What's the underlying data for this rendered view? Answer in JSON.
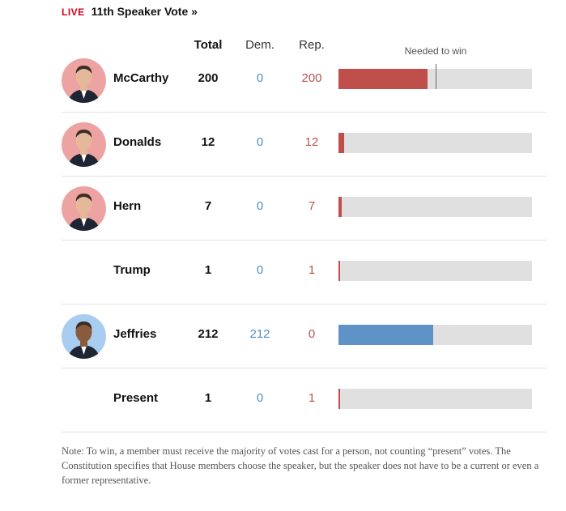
{
  "header": {
    "live": "LIVE",
    "title": "11th Speaker Vote »"
  },
  "columns": {
    "total": "Total",
    "dem": "Dem.",
    "rep": "Rep."
  },
  "needed_label": "Needed to win",
  "colors": {
    "republican": "#bf4f4b",
    "democrat": "#5f93c8",
    "track": "#e0e0e0"
  },
  "note": "Note: To win, a member must receive the majority of votes cast for a person, not counting “present” votes. The Constitution specifies that House members choose the speaker, but the speaker does not have to be a current or even a former representative.",
  "chart_data": {
    "type": "bar",
    "orientation": "horizontal",
    "title": "11th Speaker Vote »",
    "max_votes": 433,
    "needed_to_win": 217,
    "categories": [
      "McCarthy",
      "Donalds",
      "Hern",
      "Trump",
      "Jeffries",
      "Present"
    ],
    "rows": [
      {
        "name": "McCarthy",
        "total": "200",
        "dem": "0",
        "rep": "200",
        "value": 200,
        "party": "rep",
        "has_photo": true,
        "show_needed": true
      },
      {
        "name": "Donalds",
        "total": "12",
        "dem": "0",
        "rep": "12",
        "value": 12,
        "party": "rep",
        "has_photo": true,
        "show_needed": false
      },
      {
        "name": "Hern",
        "total": "7",
        "dem": "0",
        "rep": "7",
        "value": 7,
        "party": "rep",
        "has_photo": true,
        "show_needed": false
      },
      {
        "name": "Trump",
        "total": "1",
        "dem": "0",
        "rep": "1",
        "value": 1,
        "party": "rep",
        "has_photo": false,
        "show_needed": false
      },
      {
        "name": "Jeffries",
        "total": "212",
        "dem": "212",
        "rep": "0",
        "value": 212,
        "party": "dem",
        "has_photo": true,
        "show_needed": false
      },
      {
        "name": "Present",
        "total": "1",
        "dem": "0",
        "rep": "1",
        "value": 1,
        "party": "rep",
        "has_photo": false,
        "show_needed": false
      }
    ]
  }
}
